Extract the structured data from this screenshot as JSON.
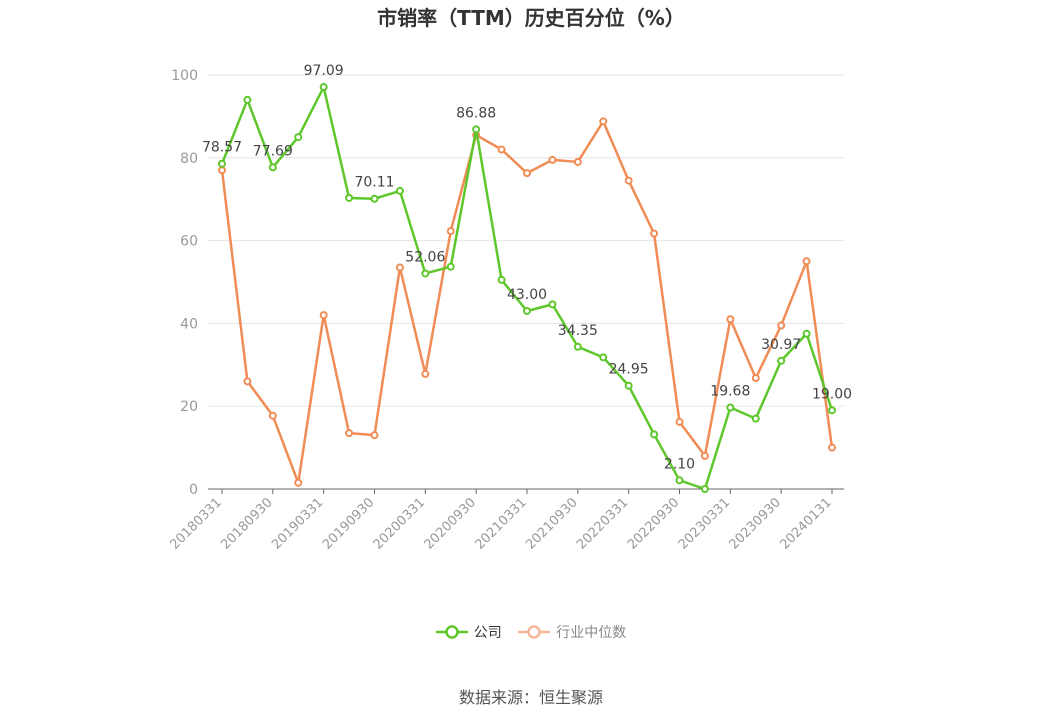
{
  "chart_data": {
    "type": "line",
    "title": "市销率（TTM）历史百分位（%）",
    "xlabel": "",
    "ylabel": "",
    "ylim": [
      0,
      100
    ],
    "yticks": [
      0,
      20,
      40,
      60,
      80,
      100
    ],
    "grid": true,
    "legend_position": "bottom",
    "x_tick_labels": [
      "20180331",
      "20180930",
      "20190331",
      "20190930",
      "20200331",
      "20200930",
      "20210331",
      "20210930",
      "20220331",
      "20220930",
      "20230331",
      "20230930",
      "20240131"
    ],
    "x": [
      "20180331",
      "20180630",
      "20180930",
      "20181231",
      "20190331",
      "20190630",
      "20190930",
      "20191231",
      "20200331",
      "20200630",
      "20200930",
      "20201231",
      "20210331",
      "20210630",
      "20210930",
      "20211231",
      "20220331",
      "20220630",
      "20220930",
      "20221231",
      "20230331",
      "20230630",
      "20230930",
      "20231231",
      "20240131"
    ],
    "series": [
      {
        "name": "公司",
        "color": "#5ec72b",
        "values": [
          78.57,
          94.0,
          77.69,
          85.0,
          97.09,
          70.3,
          70.11,
          72.0,
          52.06,
          53.7,
          86.88,
          50.5,
          43.0,
          44.6,
          34.35,
          31.8,
          24.95,
          13.2,
          2.1,
          0.0,
          19.68,
          17.0,
          30.97,
          37.5,
          19.0
        ],
        "labels": [
          "78.57",
          "",
          "77.69",
          "",
          "97.09",
          "",
          "70.11",
          "",
          "52.06",
          "",
          "86.88",
          "",
          "43.00",
          "",
          "34.35",
          "",
          "24.95",
          "",
          "2.10",
          "",
          "19.68",
          "",
          "30.97",
          "",
          "19.00"
        ]
      },
      {
        "name": "行业中位数",
        "color": "#f08c55",
        "values": [
          77.0,
          26.0,
          17.7,
          1.5,
          42.0,
          13.5,
          13.0,
          53.5,
          27.8,
          62.3,
          85.5,
          82.0,
          76.3,
          79.5,
          79.0,
          88.8,
          74.5,
          61.7,
          16.2,
          8.0,
          41.0,
          26.8,
          39.5,
          55.0,
          10.0
        ]
      }
    ]
  },
  "source_note": "数据来源：恒生聚源"
}
